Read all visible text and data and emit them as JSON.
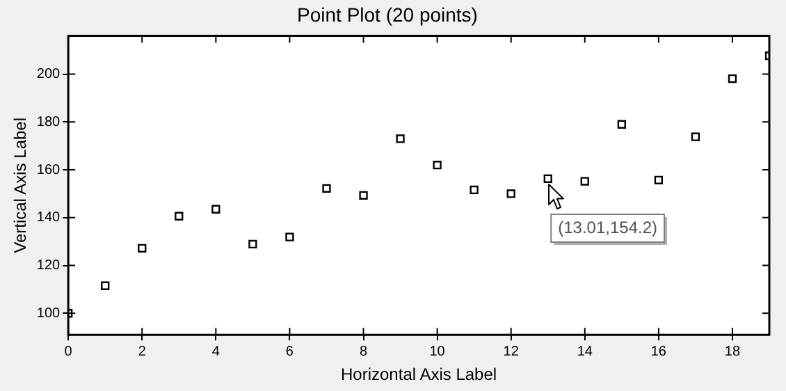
{
  "chart_data": {
    "type": "scatter",
    "title": "Point Plot (20 points)",
    "xlabel": "Horizontal Axis Label",
    "ylabel": "Vertical Axis Label",
    "x": [
      0,
      1,
      2,
      3,
      4,
      5,
      6,
      7,
      8,
      9,
      10,
      11,
      12,
      13,
      14,
      15,
      16,
      17,
      18,
      19
    ],
    "series": [
      {
        "color": "#000000",
        "values": [
          100,
          111.5,
          127.2,
          140.6,
          143.5,
          128.9,
          131.9,
          152.2,
          149.3,
          173,
          162,
          151.6,
          150,
          156.3,
          155.2,
          179,
          155.7,
          173.8,
          198.1,
          207.7
        ]
      }
    ],
    "xlim": [
      0,
      19
    ],
    "xticks": [
      0,
      2,
      4,
      6,
      8,
      10,
      12,
      14,
      16,
      18
    ],
    "ylim": [
      91,
      216
    ],
    "yticks": [
      100,
      120,
      140,
      160,
      180,
      200
    ],
    "marker": "square",
    "grid": false,
    "legend": false,
    "annotations": [
      {
        "text": "(13.01,154.2)",
        "x": 13.01,
        "y": 154.2
      }
    ]
  }
}
